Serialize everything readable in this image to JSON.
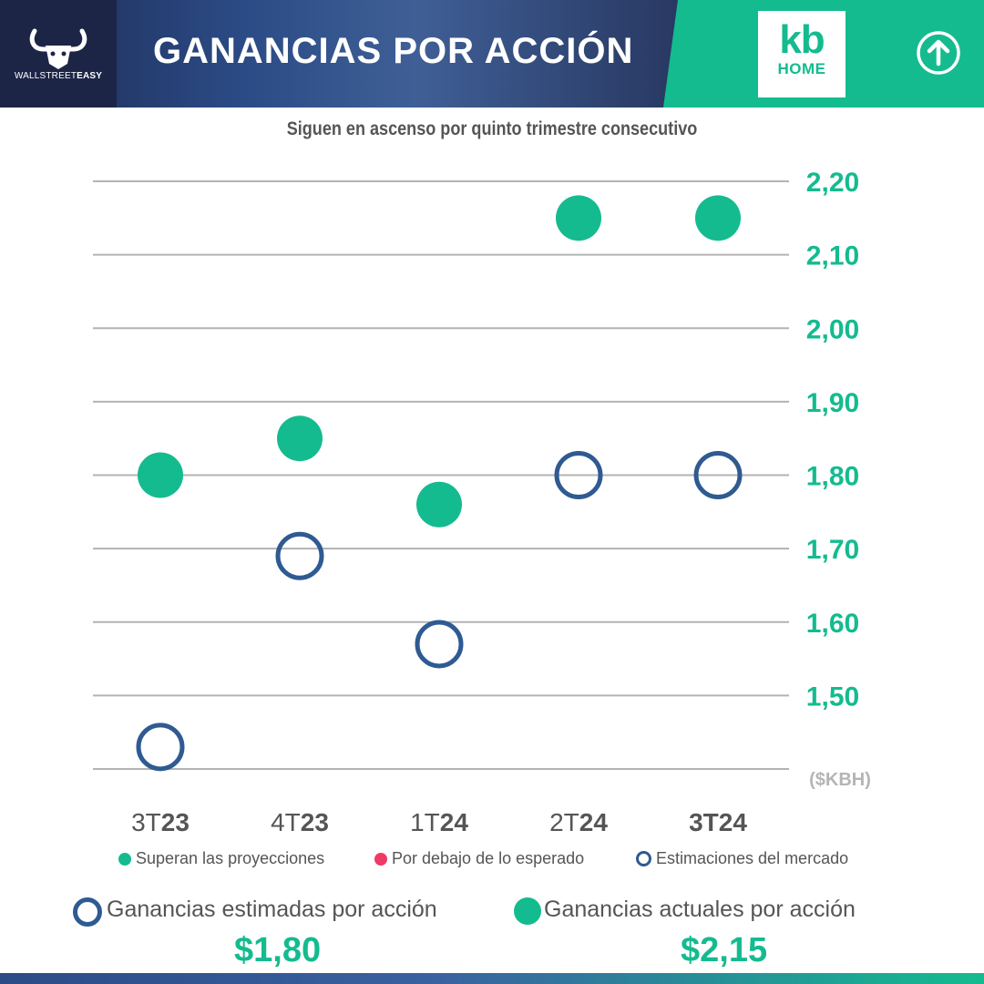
{
  "header": {
    "brand_light": "WALLSTREET",
    "brand_bold": "EASY",
    "title": "GANANCIAS POR ACCIÓN",
    "logo_top": "kb",
    "logo_bottom": "HOME",
    "up_icon": "arrow-up-circle-icon"
  },
  "colors": {
    "beat": "#14bb8f",
    "miss": "#ee3a64",
    "estimate": "#2f5a92",
    "axis_labels": "#14bb8f"
  },
  "chart_data": {
    "type": "scatter",
    "title": "Siguen en ascenso por quinto trimestre consecutivo",
    "categories": [
      "3T23",
      "4T23",
      "1T24",
      "2T24",
      "3T24"
    ],
    "category_labels": [
      {
        "prefix": "3T",
        "suffix": "23"
      },
      {
        "prefix": "4T",
        "suffix": "23"
      },
      {
        "prefix": "1T",
        "suffix": "24"
      },
      {
        "prefix": "2T",
        "suffix": "24"
      },
      {
        "prefix": "3",
        "suffix": "T24"
      }
    ],
    "series": [
      {
        "name": "Superan las proyecciones",
        "style": "filled",
        "values": [
          1.8,
          1.85,
          1.76,
          2.15,
          2.15
        ]
      },
      {
        "name": "Estimaciones del mercado",
        "style": "ring",
        "values": [
          1.43,
          1.69,
          1.57,
          1.8,
          1.8
        ]
      }
    ],
    "yticks": [
      2.2,
      2.1,
      2.0,
      1.9,
      1.8,
      1.7,
      1.6,
      1.5
    ],
    "ytick_labels": [
      "2,20",
      "2,10",
      "2,00",
      "1,90",
      "1,80",
      "1,70",
      "1,60",
      "1,50"
    ],
    "ylim": [
      1.4,
      2.2
    ],
    "ylabel": "($KBH)",
    "grid": true,
    "legend": [
      {
        "label": "Superan las proyecciones",
        "style": "filled"
      },
      {
        "label": "Por debajo de lo esperado",
        "style": "red"
      },
      {
        "label": "Estimaciones del mercado",
        "style": "ring"
      }
    ],
    "legend_position": "bottom"
  },
  "summary": {
    "estimated_label": "Ganancias estimadas por acción",
    "estimated_value": "$1,80",
    "actual_label": "Ganancias actuales por acción",
    "actual_value": "$2,15"
  }
}
